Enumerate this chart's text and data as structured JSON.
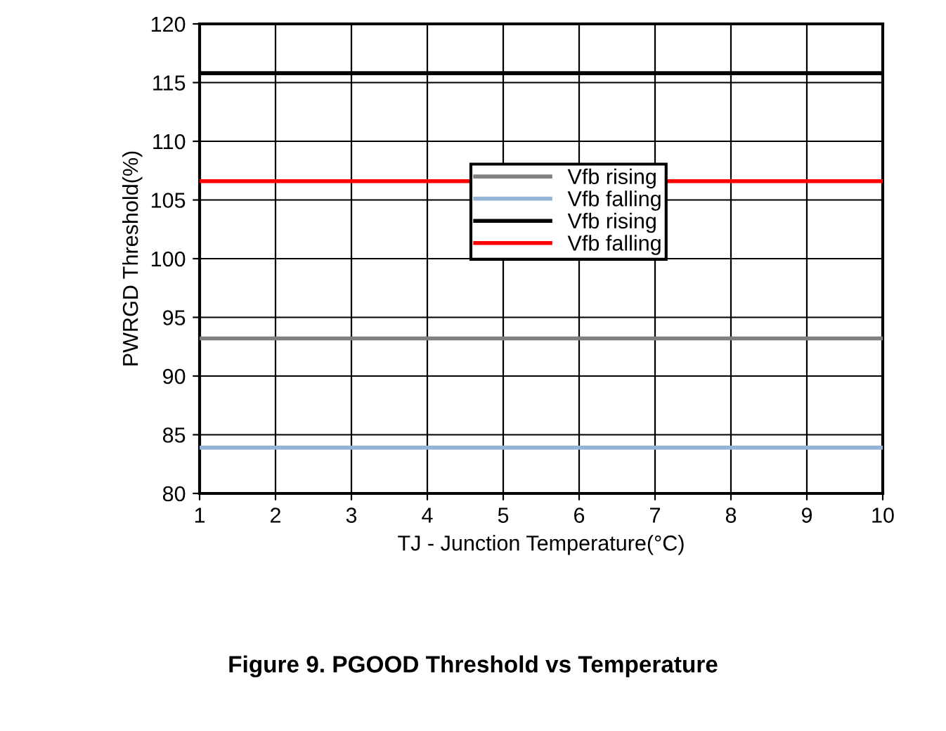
{
  "chart_data": {
    "type": "line",
    "title": "Figure 9. PGOOD Threshold vs Temperature",
    "xlabel": "TJ - Junction Temperature(°C)",
    "ylabel": "PWRGD Threshold(%)",
    "x": [
      1,
      10
    ],
    "series": [
      {
        "name": "Vfb rising",
        "color": "#808080",
        "values": [
          93.2,
          93.2
        ]
      },
      {
        "name": "Vfb falling",
        "color": "#95b3d7",
        "values": [
          83.9,
          83.9
        ]
      },
      {
        "name": "Vfb rising",
        "color": "#000000",
        "values": [
          115.8,
          115.8
        ]
      },
      {
        "name": "Vfb falling",
        "color": "#ff0000",
        "values": [
          106.6,
          106.6
        ]
      }
    ],
    "xlim": [
      1,
      10
    ],
    "xticks": [
      1,
      2,
      3,
      4,
      5,
      6,
      7,
      8,
      9,
      10
    ],
    "ylim": [
      80,
      120
    ],
    "yticks": [
      80,
      85,
      90,
      95,
      100,
      105,
      110,
      115,
      120
    ],
    "grid": true,
    "legend": "center",
    "marker": "none",
    "line_style": "solid"
  }
}
